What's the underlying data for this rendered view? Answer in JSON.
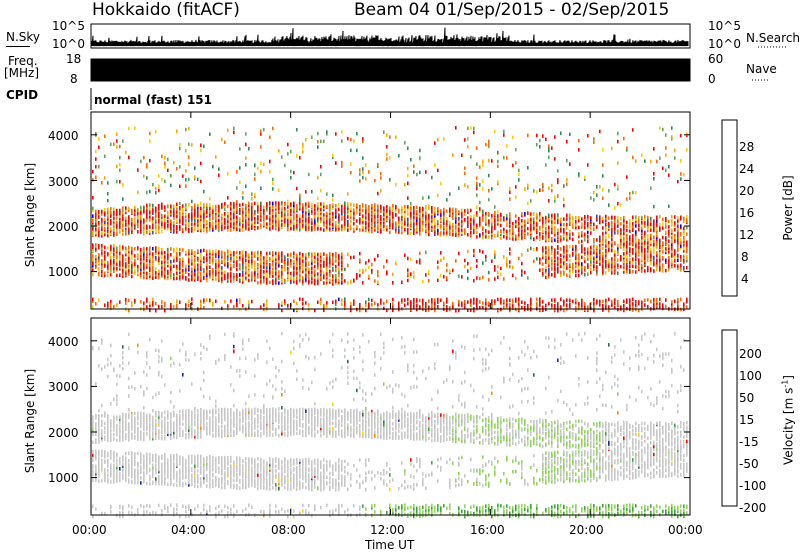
{
  "header": {
    "title_left": "Hokkaido (fitACF)",
    "title_right": "Beam 04  01/Sep/2015 - 02/Sep/2015"
  },
  "top_panels": {
    "nsky_label": "N.Sky",
    "nsky_ticks": [
      "10^5",
      "10^0"
    ],
    "nsearch_label": "N.Search",
    "nsearch_ticks": [
      "10^5",
      "10^0"
    ],
    "freq_label": "Freq.",
    "freq_unit": "[MHz]",
    "freq_ticks": [
      "18",
      "8"
    ],
    "nave_label": "Nave",
    "nave_ticks": [
      "60",
      "0"
    ],
    "cpid_label": "CPID",
    "cpid_value": "normal (fast) 151"
  },
  "chart_data": [
    {
      "type": "heatmap",
      "name": "power",
      "ylabel": "Slant Range [km]",
      "yticks": [
        "4000",
        "3000",
        "2000",
        "1000"
      ],
      "ylim": [
        180,
        4500
      ],
      "xlim": [
        "00:00",
        "24:00"
      ],
      "colorbar_label": "Power [dB]",
      "colorbar_ticks": [
        "28",
        "24",
        "20",
        "16",
        "12",
        "8",
        "4"
      ],
      "colorscale": [
        "#0000ff",
        "#2c4eb0",
        "#2e8b57",
        "#5fa85a",
        "#ffcc00",
        "#ffa500",
        "#ff6a00",
        "#ff0000"
      ]
    },
    {
      "type": "heatmap",
      "name": "velocity",
      "ylabel": "Slant Range [km]",
      "yticks": [
        "4000",
        "3000",
        "2000",
        "1000"
      ],
      "ylim": [
        180,
        4500
      ],
      "xlim": [
        "00:00",
        "24:00"
      ],
      "xlabel": "Time UT",
      "xticks": [
        "00:00",
        "04:00",
        "08:00",
        "12:00",
        "16:00",
        "20:00",
        "00:00"
      ],
      "colorbar_label": "Velocity [m s",
      "colorbar_label_sup": "-1",
      "colorbar_label_end": "]",
      "colorbar_ticks": [
        "200",
        "100",
        "50",
        "15",
        "-15",
        "-50",
        "-100",
        "-200"
      ],
      "colorscale": [
        "#1c2ab0",
        "#2e6e3e",
        "#3aa63a",
        "#8ed65a",
        "#c8c8c8",
        "#ffd700",
        "#ff8c00",
        "#ff0000"
      ]
    }
  ]
}
